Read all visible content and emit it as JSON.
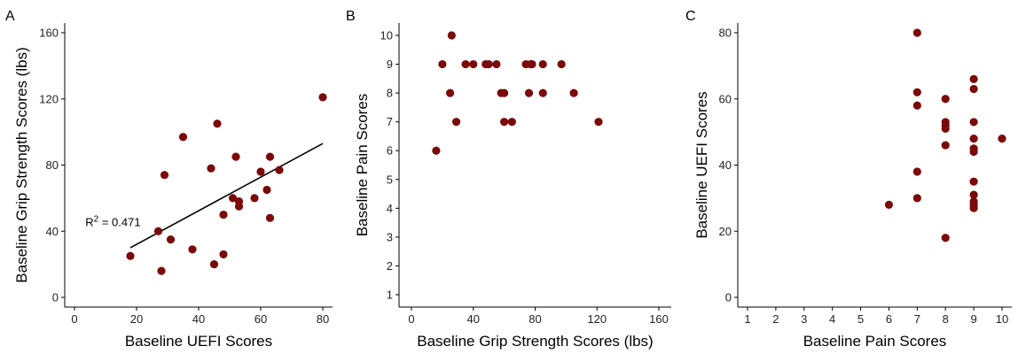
{
  "marker_color": "#7B0A0A",
  "line_color": "#000000",
  "chart_data": [
    {
      "panel": "A",
      "type": "scatter",
      "xlabel": "Baseline UEFI Scores",
      "ylabel": "Baseline Grip Strength Scores (lbs)",
      "xlim": [
        0,
        80
      ],
      "ylim": [
        0,
        160
      ],
      "xticks": [
        0,
        20,
        40,
        60,
        80
      ],
      "yticks": [
        0,
        40,
        80,
        120,
        160
      ],
      "points": [
        {
          "x": 18,
          "y": 25
        },
        {
          "x": 27,
          "y": 40
        },
        {
          "x": 28,
          "y": 16
        },
        {
          "x": 29,
          "y": 74
        },
        {
          "x": 31,
          "y": 35
        },
        {
          "x": 35,
          "y": 97
        },
        {
          "x": 38,
          "y": 29
        },
        {
          "x": 44,
          "y": 78
        },
        {
          "x": 45,
          "y": 20
        },
        {
          "x": 46,
          "y": 105
        },
        {
          "x": 48,
          "y": 26
        },
        {
          "x": 48,
          "y": 50
        },
        {
          "x": 51,
          "y": 60
        },
        {
          "x": 52,
          "y": 85
        },
        {
          "x": 53,
          "y": 55
        },
        {
          "x": 53,
          "y": 58
        },
        {
          "x": 58,
          "y": 60
        },
        {
          "x": 60,
          "y": 76
        },
        {
          "x": 62,
          "y": 65
        },
        {
          "x": 63,
          "y": 85
        },
        {
          "x": 63,
          "y": 48
        },
        {
          "x": 66,
          "y": 77
        },
        {
          "x": 80,
          "y": 121
        }
      ],
      "fit_line": {
        "x": [
          18,
          80
        ],
        "y": [
          30,
          93
        ]
      },
      "annotation": {
        "prefix": "R",
        "sup": "2",
        "suffix": " = 0.471"
      }
    },
    {
      "panel": "B",
      "type": "scatter",
      "xlabel": "Baseline Grip Strength Scores (lbs)",
      "ylabel": "Baseline Pain Scores",
      "xlim": [
        0,
        160
      ],
      "ylim": [
        1,
        10
      ],
      "xticks": [
        0,
        40,
        80,
        120,
        160
      ],
      "yticks": [
        1,
        2,
        3,
        4,
        5,
        6,
        7,
        8,
        9,
        10
      ],
      "points": [
        {
          "x": 16,
          "y": 6
        },
        {
          "x": 20,
          "y": 9
        },
        {
          "x": 25,
          "y": 8
        },
        {
          "x": 26,
          "y": 10
        },
        {
          "x": 29,
          "y": 7
        },
        {
          "x": 35,
          "y": 9
        },
        {
          "x": 40,
          "y": 9
        },
        {
          "x": 48,
          "y": 9
        },
        {
          "x": 50,
          "y": 9
        },
        {
          "x": 55,
          "y": 9
        },
        {
          "x": 58,
          "y": 8
        },
        {
          "x": 60,
          "y": 8
        },
        {
          "x": 60,
          "y": 7
        },
        {
          "x": 65,
          "y": 7
        },
        {
          "x": 74,
          "y": 9
        },
        {
          "x": 76,
          "y": 8
        },
        {
          "x": 77,
          "y": 9
        },
        {
          "x": 78,
          "y": 9
        },
        {
          "x": 85,
          "y": 9
        },
        {
          "x": 85,
          "y": 8
        },
        {
          "x": 97,
          "y": 9
        },
        {
          "x": 105,
          "y": 8
        },
        {
          "x": 121,
          "y": 7
        }
      ]
    },
    {
      "panel": "C",
      "type": "scatter",
      "xlabel": "Baseline Pain Scores",
      "ylabel": "Baseline UEFI Scores",
      "xlim": [
        1,
        10
      ],
      "ylim": [
        0,
        80
      ],
      "xticks": [
        1,
        2,
        3,
        4,
        5,
        6,
        7,
        8,
        9,
        10
      ],
      "yticks": [
        0,
        20,
        40,
        60,
        80
      ],
      "points": [
        {
          "x": 6,
          "y": 28
        },
        {
          "x": 7,
          "y": 80
        },
        {
          "x": 7,
          "y": 62
        },
        {
          "x": 7,
          "y": 58
        },
        {
          "x": 7,
          "y": 38
        },
        {
          "x": 7,
          "y": 30
        },
        {
          "x": 8,
          "y": 60
        },
        {
          "x": 8,
          "y": 53
        },
        {
          "x": 8,
          "y": 52
        },
        {
          "x": 8,
          "y": 51
        },
        {
          "x": 8,
          "y": 46
        },
        {
          "x": 8,
          "y": 18
        },
        {
          "x": 9,
          "y": 66
        },
        {
          "x": 9,
          "y": 63
        },
        {
          "x": 9,
          "y": 53
        },
        {
          "x": 9,
          "y": 48
        },
        {
          "x": 9,
          "y": 45
        },
        {
          "x": 9,
          "y": 44
        },
        {
          "x": 9,
          "y": 35
        },
        {
          "x": 9,
          "y": 31
        },
        {
          "x": 9,
          "y": 29
        },
        {
          "x": 9,
          "y": 28
        },
        {
          "x": 9,
          "y": 27
        },
        {
          "x": 10,
          "y": 48
        }
      ]
    }
  ]
}
